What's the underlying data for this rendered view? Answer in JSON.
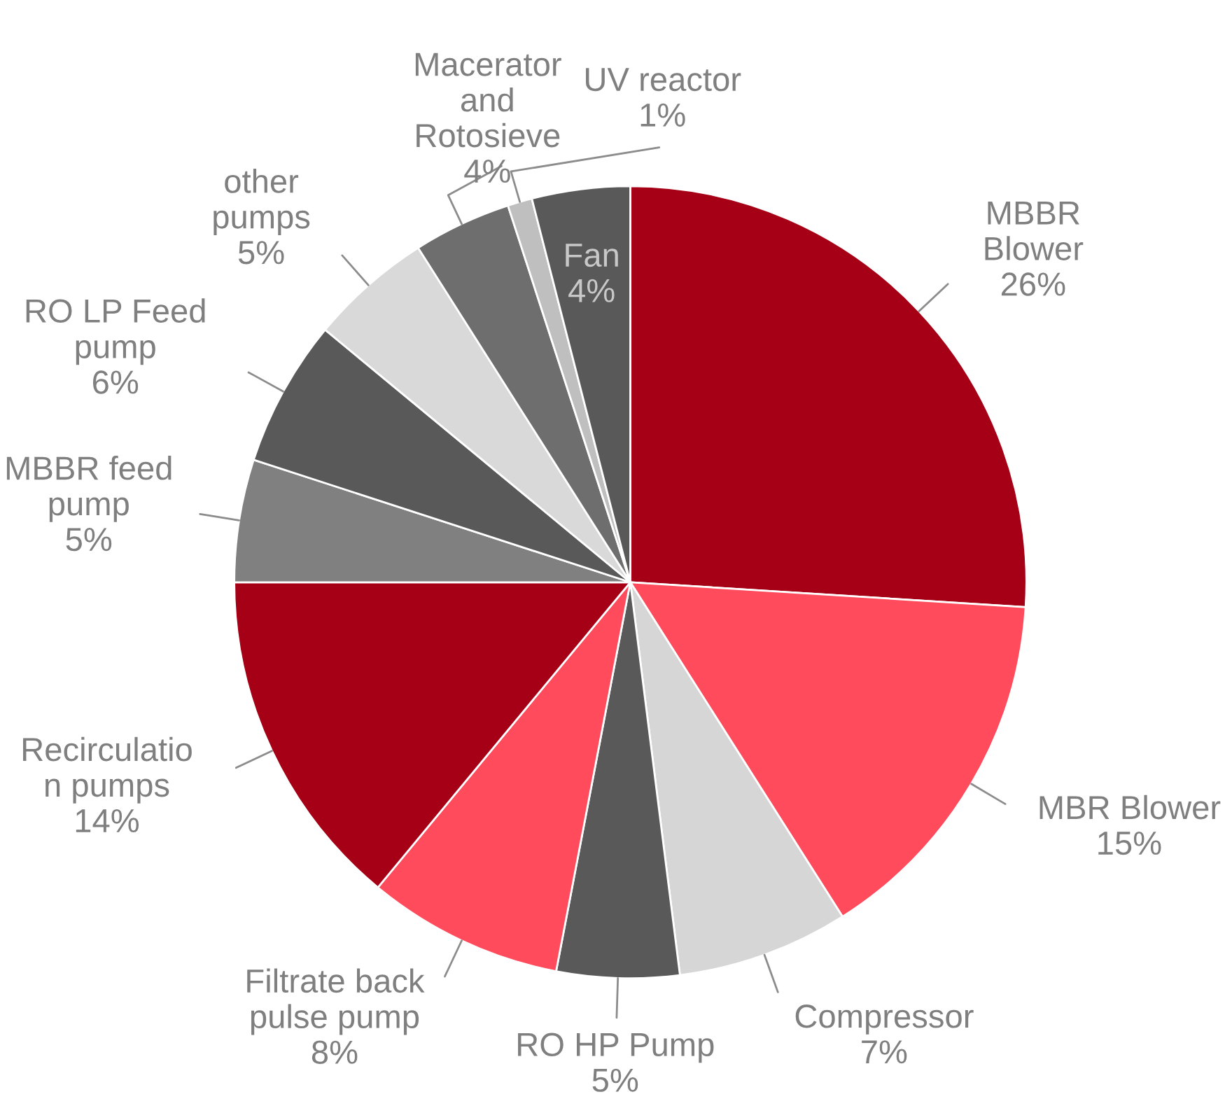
{
  "chart_data": {
    "type": "pie",
    "categories": [
      "MBBR\nBlower",
      "MBR Blower",
      "Compressor",
      "RO HP Pump",
      "Filtrate back\npulse pump",
      "Recirculatio\nn pumps",
      "MBBR feed\npump",
      "RO LP Feed\npump",
      "other\npumps",
      "Macerator\nand\nRotosieve",
      "UV reactor",
      "Fan"
    ],
    "values": [
      26,
      15,
      7,
      5,
      8,
      14,
      5,
      6,
      5,
      4,
      1,
      4
    ],
    "value_labels": [
      "26%",
      "15%",
      "7%",
      "5%",
      "8%",
      "14%",
      "5%",
      "6%",
      "5%",
      "4%",
      "1%",
      "4%"
    ],
    "colors": [
      "#a50016",
      "#ff4b5c",
      "#d6d6d6",
      "#595959",
      "#ff4b5c",
      "#a50016",
      "#808080",
      "#595959",
      "#d9d9d9",
      "#6e6e6e",
      "#bfbfbf",
      "#595959"
    ]
  }
}
